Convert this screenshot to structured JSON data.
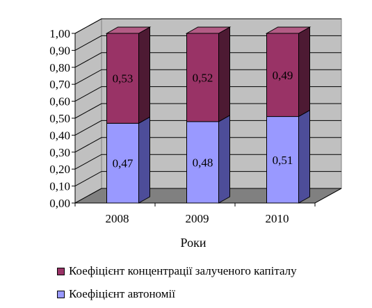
{
  "chart_data": {
    "type": "bar",
    "stacked": true,
    "three_d": true,
    "categories": [
      "2008",
      "2009",
      "2010"
    ],
    "series": [
      {
        "name": "Коефіцієнт автономії",
        "values": [
          0.47,
          0.48,
          0.51
        ],
        "labels": [
          "0,47",
          "0,48",
          "0,51"
        ],
        "color": "#9999ff"
      },
      {
        "name": "Коефіцієнт концентрації залученого капіталу",
        "values": [
          0.53,
          0.52,
          0.49
        ],
        "labels": [
          "0,53",
          "0,52",
          "0,49"
        ],
        "color": "#993366"
      }
    ],
    "xlabel": "Роки",
    "ylabel": "",
    "ylim": [
      0,
      1
    ],
    "yticks": [
      "0,00",
      "0,10",
      "0,20",
      "0,30",
      "0,40",
      "0,50",
      "0,60",
      "0,70",
      "0,80",
      "0,90",
      "1,00"
    ],
    "grid": true,
    "legend_position": "bottom-left"
  }
}
